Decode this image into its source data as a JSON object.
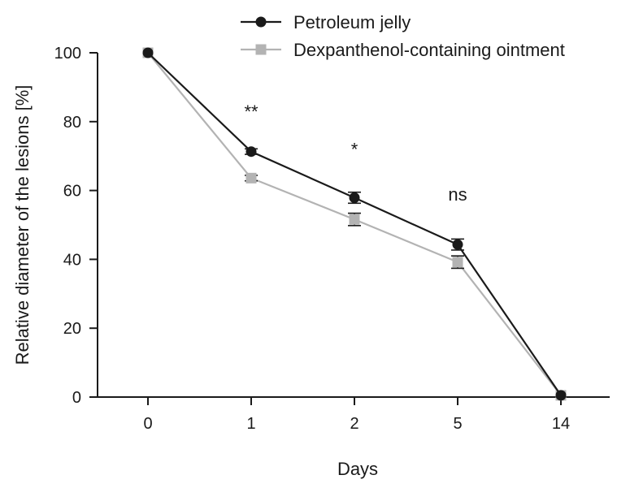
{
  "chart_data": {
    "type": "line",
    "title": "",
    "xlabel": "Days",
    "ylabel": "Relative diameter of the lesions [%]",
    "categories": [
      "0",
      "1",
      "2",
      "5",
      "14"
    ],
    "ylim": [
      0,
      100
    ],
    "yticks": [
      0,
      20,
      40,
      60,
      80,
      100
    ],
    "grid": false,
    "legend_position": "top",
    "series": [
      {
        "name": "Petroleum jelly",
        "color": "#1a1a1a",
        "marker": "circle",
        "values": [
          100,
          71.3,
          57.9,
          44.3,
          0.5
        ],
        "errors": [
          0,
          0.8,
          1.6,
          1.6,
          0
        ]
      },
      {
        "name": "Dexpanthenol-containing ointment",
        "color": "#b3b3b3",
        "marker": "square",
        "values": [
          100,
          63.6,
          51.6,
          39.2,
          0.5
        ],
        "errors": [
          0,
          0.8,
          1.8,
          1.8,
          0
        ]
      }
    ],
    "annotations": [
      {
        "category": "1",
        "text": "**",
        "y": 83
      },
      {
        "category": "2",
        "text": "*",
        "y": 72
      },
      {
        "category": "5",
        "text": "ns",
        "y": 59
      }
    ]
  }
}
